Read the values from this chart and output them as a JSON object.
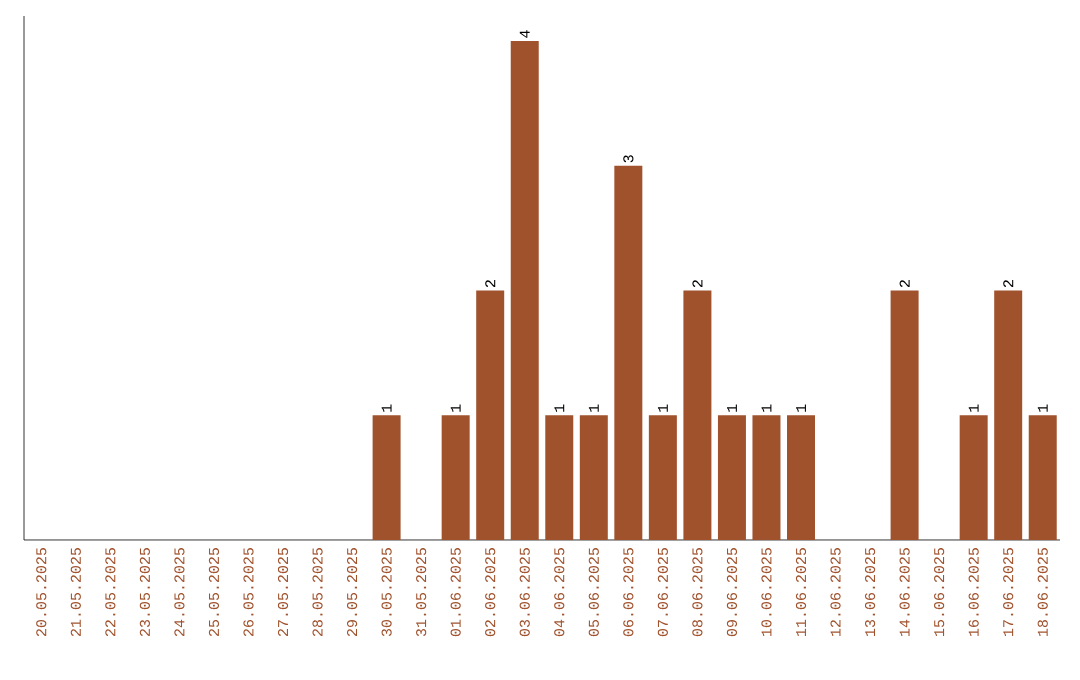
{
  "chart_data": {
    "type": "bar",
    "categories": [
      "20.05.2025",
      "21.05.2025",
      "22.05.2025",
      "23.05.2025",
      "24.05.2025",
      "25.05.2025",
      "26.05.2025",
      "27.05.2025",
      "28.05.2025",
      "29.05.2025",
      "30.05.2025",
      "31.05.2025",
      "01.06.2025",
      "02.06.2025",
      "03.06.2025",
      "04.06.2025",
      "05.06.2025",
      "06.06.2025",
      "07.06.2025",
      "08.06.2025",
      "09.06.2025",
      "10.06.2025",
      "11.06.2025",
      "12.06.2025",
      "13.06.2025",
      "14.06.2025",
      "15.06.2025",
      "16.06.2025",
      "17.06.2025",
      "18.06.2025"
    ],
    "values": [
      0,
      0,
      0,
      0,
      0,
      0,
      0,
      0,
      0,
      0,
      1,
      0,
      1,
      2,
      4,
      1,
      1,
      3,
      1,
      2,
      1,
      1,
      1,
      0,
      0,
      2,
      0,
      1,
      2,
      1
    ],
    "value_labels": [
      null,
      null,
      null,
      null,
      null,
      null,
      null,
      null,
      null,
      null,
      "1",
      null,
      "1",
      "2",
      "4",
      "1",
      "1",
      "3",
      "1",
      "2",
      "1",
      "1",
      "1",
      null,
      null,
      "2",
      null,
      "1",
      "2",
      "1"
    ],
    "color": "#a0522d",
    "tick_labels": "x",
    "grid": false
  }
}
